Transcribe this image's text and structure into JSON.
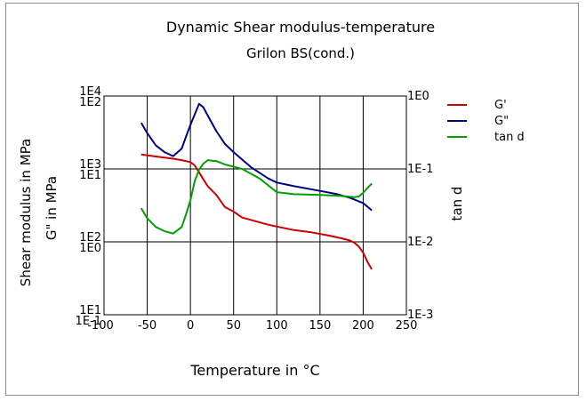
{
  "chart_data": {
    "type": "line",
    "title": "Dynamic Shear modulus-temperature",
    "subtitle": "Grilon BS(cond.)",
    "xlabel": "Temperature in °C",
    "ylabel_left_outer": "Shear modulus in MPa",
    "ylabel_left_inner": "G\" in MPa",
    "ylabel_right": "tan d",
    "xlim": [
      -100,
      250
    ],
    "x_ticks": [
      "-100",
      "-50",
      "0",
      "50",
      "100",
      "150",
      "200",
      "250"
    ],
    "y_ticks_left_outer": [
      "1E1",
      "1E2",
      "1E3",
      "1E4"
    ],
    "y_ticks_left_inner": [
      "1E-1",
      "1E0",
      "1E1",
      "1E2"
    ],
    "y_ticks_right": [
      "1E-3",
      "1E-2",
      "1E-1",
      "1E0"
    ],
    "grid": true,
    "legend_position": "right",
    "series": [
      {
        "name": "G'",
        "axis": "left_outer",
        "color": "#cc0000",
        "x": [
          -57,
          -40,
          -30,
          -20,
          -10,
          0,
          5,
          10,
          15,
          20,
          30,
          40,
          50,
          60,
          70,
          80,
          90,
          100,
          120,
          140,
          160,
          175,
          185,
          190,
          195,
          200,
          205,
          210
        ],
        "y": [
          1580,
          1480,
          1430,
          1380,
          1320,
          1240,
          1120,
          900,
          720,
          580,
          440,
          300,
          260,
          215,
          200,
          185,
          172,
          162,
          145,
          135,
          122,
          112,
          104,
          97,
          86,
          71,
          53,
          42
        ]
      },
      {
        "name": "G\"",
        "axis": "left_inner",
        "color": "#000080",
        "x": [
          -57,
          -50,
          -40,
          -30,
          -20,
          -10,
          -5,
          0,
          5,
          10,
          15,
          20,
          30,
          40,
          50,
          70,
          90,
          100,
          120,
          150,
          170,
          185,
          200,
          210
        ],
        "y": [
          43,
          31,
          21,
          17,
          15,
          19,
          28,
          40,
          56,
          78,
          70,
          54,
          33,
          22,
          17,
          10.6,
          7.4,
          6.5,
          5.8,
          5.0,
          4.5,
          4.0,
          3.4,
          2.7
        ]
      },
      {
        "name": "tan d",
        "axis": "right",
        "color": "#00a000",
        "x": [
          -57,
          -50,
          -40,
          -30,
          -20,
          -10,
          -5,
          0,
          5,
          10,
          15,
          20,
          30,
          40,
          60,
          80,
          100,
          120,
          150,
          170,
          180,
          190,
          195,
          200,
          205,
          210
        ],
        "y": [
          0.029,
          0.021,
          0.016,
          0.014,
          0.013,
          0.016,
          0.024,
          0.037,
          0.068,
          0.098,
          0.118,
          0.132,
          0.128,
          0.115,
          0.1,
          0.074,
          0.048,
          0.045,
          0.044,
          0.043,
          0.042,
          0.041,
          0.042,
          0.047,
          0.055,
          0.063
        ]
      }
    ]
  }
}
